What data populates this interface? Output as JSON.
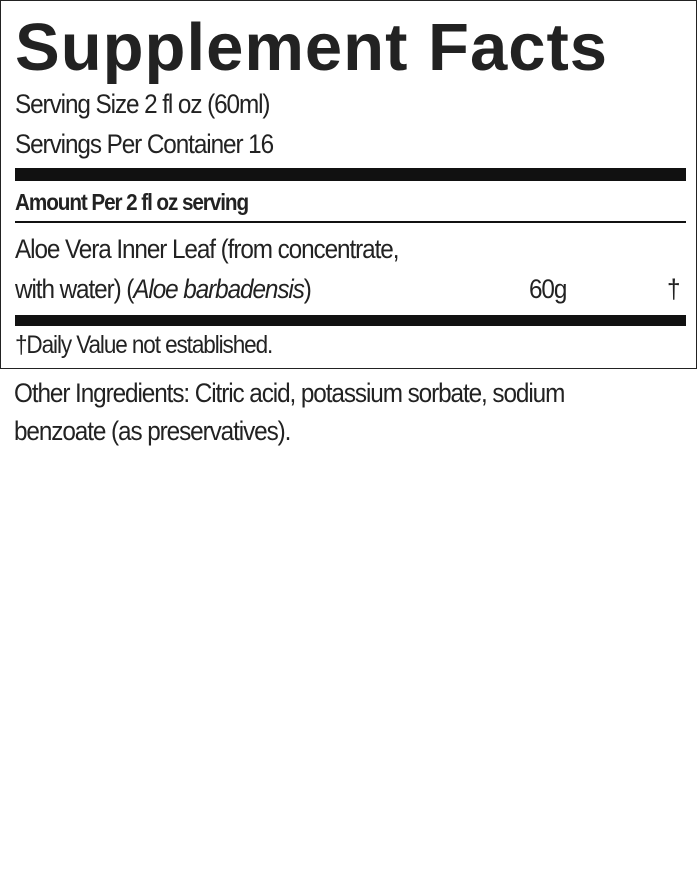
{
  "title": "Supplement Facts",
  "serving_size": "Serving Size 2 fl oz (60ml)",
  "servings_per_container": "Servings Per Container 16",
  "amount_per": "Amount Per 2 fl oz serving",
  "ingredients": [
    {
      "name_line1": "Aloe Vera Inner Leaf (from concentrate,",
      "name_line2_prefix": "with water) (",
      "name_latin": "Aloe barbadensis",
      "name_line2_suffix": ")",
      "amount": "60g",
      "daily_value": "†"
    }
  ],
  "footnote": "†Daily Value not established.",
  "other_ingredients": {
    "line1": "Other Ingredients: Citric acid, potassium sorbate, sodium",
    "line2": "benzoate (as preservatives)."
  }
}
